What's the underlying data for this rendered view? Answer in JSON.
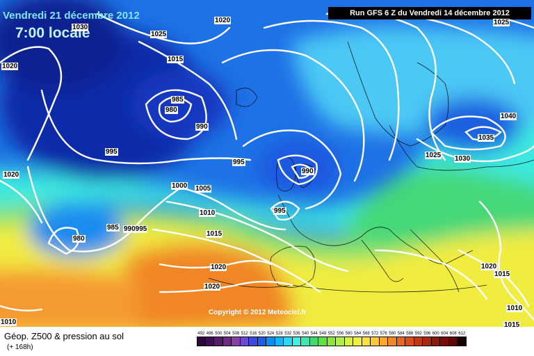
{
  "header": {
    "date": "Vendredi 21 décembre 2012",
    "time": "7:00 locale",
    "run": "Run GFS 6 Z du Vendredi 14 décembre 2012"
  },
  "copyright": "Copyright © 2012 Meteociel.fr",
  "footer": {
    "title": "Géop. Z500 & pression au sol",
    "subtitle": "(+ 168h)"
  },
  "isobar_labels": [
    "1030",
    "1025",
    "1020",
    "1020",
    "1015",
    "1020",
    "985",
    "980",
    "990",
    "995",
    "995",
    "990",
    "1000",
    "1005",
    "1010",
    "995",
    "980",
    "985",
    "990995",
    "1015",
    "1025",
    "1030",
    "1035",
    "1040",
    "1025",
    "1020",
    "1020",
    "1015",
    "1010",
    "1015",
    "1010",
    "1020"
  ],
  "scale": {
    "labels": [
      "492",
      "496",
      "500",
      "504",
      "508",
      "512",
      "516",
      "520",
      "524",
      "528",
      "532",
      "536",
      "540",
      "544",
      "548",
      "552",
      "556",
      "560",
      "564",
      "568",
      "572",
      "576",
      "580",
      "584",
      "588",
      "592",
      "596",
      "600",
      "604",
      "608",
      "612"
    ],
    "colors": [
      "#2b0a3a",
      "#3f0f52",
      "#5a1a6a",
      "#6d2a86",
      "#8a3ea8",
      "#6a4bd0",
      "#3a4ce0",
      "#1f5ae8",
      "#0a8ef0",
      "#10b8f5",
      "#2ad8f5",
      "#3ef0e0",
      "#3ae8b0",
      "#40d870",
      "#60e040",
      "#8ae838",
      "#b0f040",
      "#d8f040",
      "#f0f040",
      "#f8e040",
      "#f8c838",
      "#f8a830",
      "#f08828",
      "#e86820",
      "#d85018",
      "#c03810",
      "#a82810",
      "#901808",
      "#780c08",
      "#600808",
      "#180000"
    ]
  },
  "legend_colors": {
    "deep_low": "#0a1e96",
    "low": "#1e4ad6",
    "mid": "#1e9ef0",
    "cyan": "#3ee8f0",
    "green": "#3ed87a",
    "yellow": "#f2f23a",
    "orange": "#f08a28"
  }
}
